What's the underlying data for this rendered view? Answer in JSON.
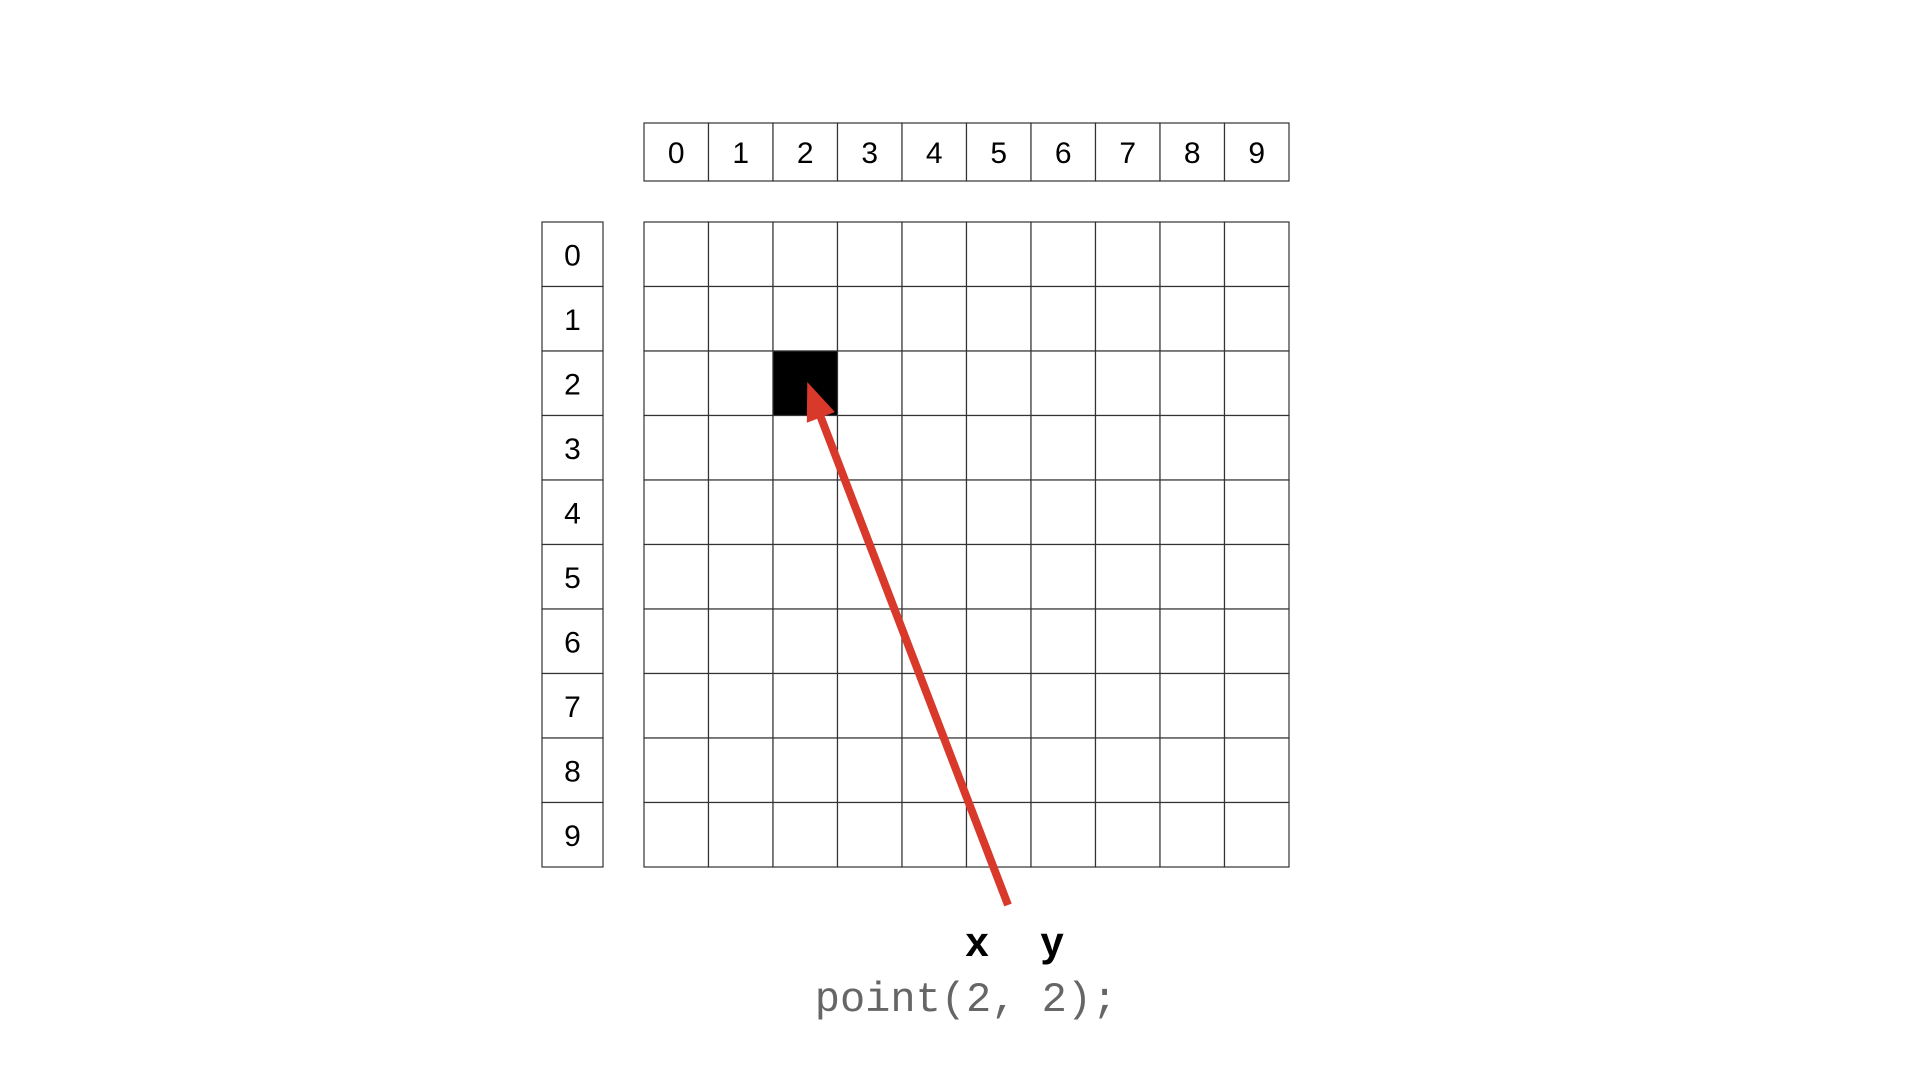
{
  "columns": [
    "0",
    "1",
    "2",
    "3",
    "4",
    "5",
    "6",
    "7",
    "8",
    "9"
  ],
  "rows": [
    "0",
    "1",
    "2",
    "3",
    "4",
    "5",
    "6",
    "7",
    "8",
    "9"
  ],
  "highlighted_cell": {
    "x": 2,
    "y": 2
  },
  "axis_labels": {
    "x": "x",
    "y": "y"
  },
  "code_text": "point(2, 2);",
  "colors": {
    "cell_fill": "#000000",
    "grid_line": "#333333",
    "arrow": "#d8392b",
    "code": "#666666"
  }
}
